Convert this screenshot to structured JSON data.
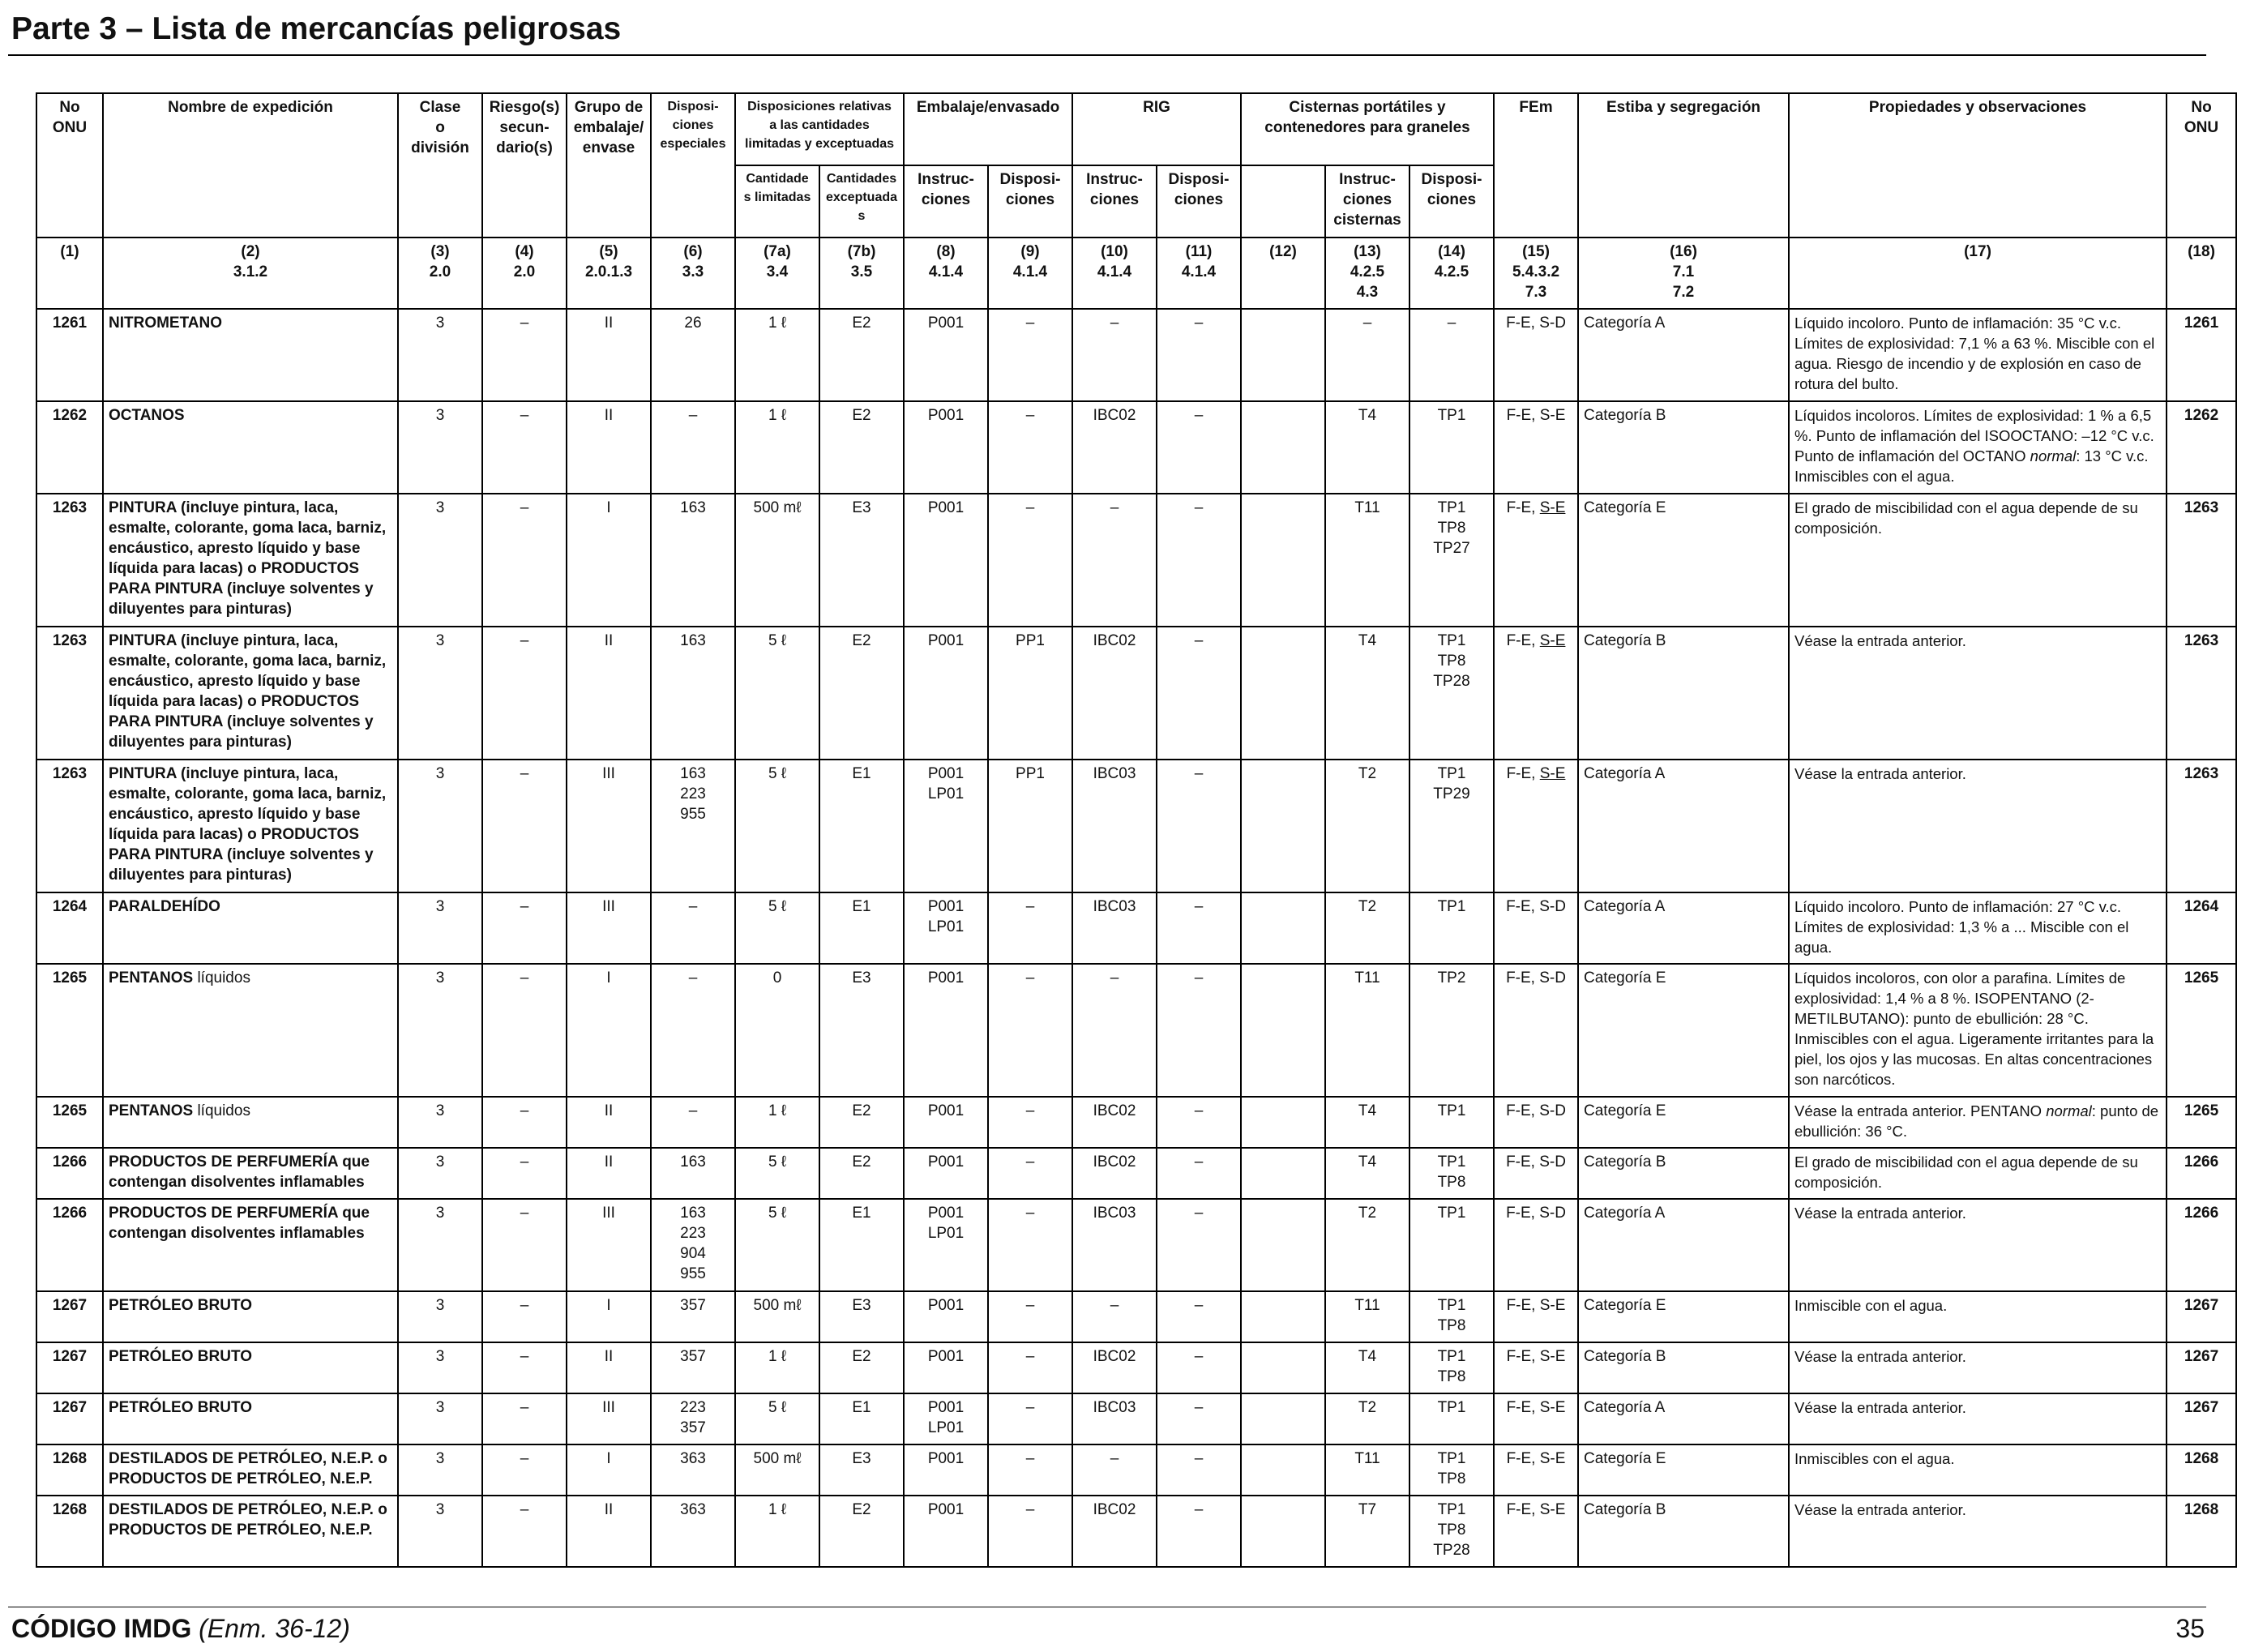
{
  "page": {
    "title": "Parte 3 – Lista de mercancías peligrosas",
    "footer_code": "CÓDIGO IMDG",
    "footer_edition": "(Enm. 36-12)",
    "page_number": "35"
  },
  "headers": {
    "unb": "No\nONU",
    "name": "Nombre de expedición",
    "class": "Clase\no\ndivisión",
    "subrisk": "Riesgo(s)\nsecun-\ndario(s)",
    "pg": "Grupo de\nembalaje/\nenvase",
    "sp": "Disposi-\nciones\nespeciales",
    "limited_group": "Disposiciones relativas\na las cantidades\nlimitadas y exceptuadas",
    "limited": "Cantidade\ns limitadas",
    "excepted": "Cantidades\nexceptuadas",
    "packing_group": "Embalaje/envasado",
    "pack_instr": "Instruc-\nciones",
    "pack_prov": "Disposi-\nciones",
    "ibc_group": "RIG",
    "ibc_instr": "Instruc-\nciones",
    "ibc_prov": "Disposi-\nciones",
    "tank_group": "Cisternas portátiles y\ncontenedores para graneles",
    "tank_instr": "Instruc-\nciones\ncisternas",
    "tank_prov": "Disposi-\nciones",
    "ems": "FEm",
    "stowage": "Estiba y segregación",
    "props": "Propiedades y observaciones",
    "unb_right": "No\nONU"
  },
  "column_numbers": [
    "(1)",
    "(2)\n3.1.2",
    "(3)\n2.0",
    "(4)\n2.0",
    "(5)\n2.0.1.3",
    "(6)\n3.3",
    "(7a)\n3.4",
    "(7b)\n3.5",
    "(8)\n4.1.4",
    "(9)\n4.1.4",
    "(10)\n4.1.4",
    "(11)\n4.1.4",
    "(12)",
    "(13)\n4.2.5\n4.3",
    "(14)\n4.2.5",
    "(15)\n5.4.3.2\n7.3",
    "(16)\n7.1\n7.2",
    "(17)",
    "(18)"
  ],
  "rows": [
    {
      "un": "1261",
      "name": "NITROMETANO",
      "name_suffix": "",
      "cls": "3",
      "sub": "–",
      "pg": "II",
      "sp": "26",
      "lq": "1 ℓ",
      "eq": "E2",
      "pi": "P001",
      "pp": "–",
      "ibc": "–",
      "ibcp": "–",
      "c12": "",
      "tk": "–",
      "tp": "–",
      "ems1": "F-E, ",
      "ems2": "S-D",
      "ems_u": false,
      "stow": "Categoría A",
      "props": "Líquido incoloro. Punto de inflamación: 35 °C v.c. Límites de explosividad: 7,1 % a 63 %. Miscible con el agua. Riesgo de incendio y de explosión en caso de rotura del bulto.",
      "props_it": "",
      "props_end": ""
    },
    {
      "un": "1262",
      "name": "OCTANOS",
      "name_suffix": "",
      "cls": "3",
      "sub": "–",
      "pg": "II",
      "sp": "–",
      "lq": "1 ℓ",
      "eq": "E2",
      "pi": "P001",
      "pp": "–",
      "ibc": "IBC02",
      "ibcp": "–",
      "c12": "",
      "tk": "T4",
      "tp": "TP1",
      "ems1": "F-E, ",
      "ems2": "S-E",
      "ems_u": false,
      "stow": "Categoría B",
      "props": "Líquidos incoloros. Límites de explosividad: 1 % a 6,5 %. Punto de inflamación del ISOOCTANO: –12 °C v.c. Punto de inflamación del OCTANO ",
      "props_it": "normal",
      "props_end": ": 13 °C v.c. Inmiscibles con el agua."
    },
    {
      "un": "1263",
      "name": "PINTURA (incluye pintura, laca, esmalte, colorante, goma laca, barniz, encáustico, apresto líquido y base líquida para lacas) o PRODUCTOS PARA PINTURA (incluye solventes y diluyentes para pinturas)",
      "name_suffix": "",
      "cls": "3",
      "sub": "–",
      "pg": "I",
      "sp": "163",
      "lq": "500 mℓ",
      "eq": "E3",
      "pi": "P001",
      "pp": "–",
      "ibc": "–",
      "ibcp": "–",
      "c12": "",
      "tk": "T11",
      "tp": "TP1\nTP8\nTP27",
      "ems1": "F-E, ",
      "ems2": "S-E",
      "ems_u": true,
      "stow": "Categoría E",
      "props": "El grado de miscibilidad con el agua depende de su composición.",
      "props_it": "",
      "props_end": ""
    },
    {
      "un": "1263",
      "name": "PINTURA (incluye pintura, laca, esmalte, colorante, goma laca, barniz, encáustico, apresto líquido y base líquida para lacas) o PRODUCTOS PARA PINTURA (incluye solventes y diluyentes para pinturas)",
      "name_suffix": "",
      "cls": "3",
      "sub": "–",
      "pg": "II",
      "sp": "163",
      "lq": "5 ℓ",
      "eq": "E2",
      "pi": "P001",
      "pp": "PP1",
      "ibc": "IBC02",
      "ibcp": "–",
      "c12": "",
      "tk": "T4",
      "tp": "TP1\nTP8\nTP28",
      "ems1": "F-E, ",
      "ems2": "S-E",
      "ems_u": true,
      "stow": "Categoría B",
      "props": "Véase la entrada anterior.",
      "props_it": "",
      "props_end": ""
    },
    {
      "un": "1263",
      "name": "PINTURA (incluye pintura, laca, esmalte, colorante, goma laca, barniz, encáustico, apresto líquido y base líquida para lacas) o PRODUCTOS PARA PINTURA (incluye solventes y diluyentes para pinturas)",
      "name_suffix": "",
      "cls": "3",
      "sub": "–",
      "pg": "III",
      "sp": "163\n223\n955",
      "lq": "5 ℓ",
      "eq": "E1",
      "pi": "P001\nLP01",
      "pp": "PP1",
      "ibc": "IBC03",
      "ibcp": "–",
      "c12": "",
      "tk": "T2",
      "tp": "TP1\nTP29",
      "ems1": "F-E, ",
      "ems2": "S-E",
      "ems_u": true,
      "stow": "Categoría A",
      "props": "Véase la entrada anterior.",
      "props_it": "",
      "props_end": ""
    },
    {
      "un": "1264",
      "name": "PARALDEHÍDO",
      "name_suffix": "",
      "cls": "3",
      "sub": "–",
      "pg": "III",
      "sp": "–",
      "lq": "5 ℓ",
      "eq": "E1",
      "pi": "P001\nLP01",
      "pp": "–",
      "ibc": "IBC03",
      "ibcp": "–",
      "c12": "",
      "tk": "T2",
      "tp": "TP1",
      "ems1": "F-E, ",
      "ems2": "S-D",
      "ems_u": false,
      "stow": "Categoría A",
      "props": "Líquido incoloro. Punto de inflamación: 27 °C v.c. Límites de explosividad: 1,3 % a ... Miscible con el agua.",
      "props_it": "",
      "props_end": ""
    },
    {
      "un": "1265",
      "name": "PENTANOS",
      "name_suffix": " líquidos",
      "cls": "3",
      "sub": "–",
      "pg": "I",
      "sp": "–",
      "lq": "0",
      "eq": "E3",
      "pi": "P001",
      "pp": "–",
      "ibc": "–",
      "ibcp": "–",
      "c12": "",
      "tk": "T11",
      "tp": "TP2",
      "ems1": "F-E, ",
      "ems2": "S-D",
      "ems_u": false,
      "stow": "Categoría E",
      "props": "Líquidos incoloros, con olor a parafina. Límites de explosividad: 1,4 % a 8 %. ISOPENTANO (2-METILBUTANO): punto de ebullición: 28 °C. Inmiscibles con el agua. Ligeramente irritantes para la piel, los ojos y las mucosas. En altas concentraciones son narcóticos.",
      "props_it": "",
      "props_end": ""
    },
    {
      "un": "1265",
      "name": "PENTANOS",
      "name_suffix": " líquidos",
      "cls": "3",
      "sub": "–",
      "pg": "II",
      "sp": "–",
      "lq": "1 ℓ",
      "eq": "E2",
      "pi": "P001",
      "pp": "–",
      "ibc": "IBC02",
      "ibcp": "–",
      "c12": "",
      "tk": "T4",
      "tp": "TP1",
      "ems1": "F-E, ",
      "ems2": "S-D",
      "ems_u": false,
      "stow": "Categoría E",
      "props": "Véase la entrada anterior. PENTANO ",
      "props_it": "normal",
      "props_end": ": punto de ebullición: 36 °C."
    },
    {
      "un": "1266",
      "name": "PRODUCTOS DE PERFUMERÍA que contengan disolventes inflamables",
      "name_suffix": "",
      "cls": "3",
      "sub": "–",
      "pg": "II",
      "sp": "163",
      "lq": "5 ℓ",
      "eq": "E2",
      "pi": "P001",
      "pp": "–",
      "ibc": "IBC02",
      "ibcp": "–",
      "c12": "",
      "tk": "T4",
      "tp": "TP1\nTP8",
      "ems1": "F-E, ",
      "ems2": "S-D",
      "ems_u": false,
      "stow": "Categoría B",
      "props": "El grado de miscibilidad con el agua depende de su composición.",
      "props_it": "",
      "props_end": ""
    },
    {
      "un": "1266",
      "name": "PRODUCTOS DE PERFUMERÍA que contengan disolventes inflamables",
      "name_suffix": "",
      "cls": "3",
      "sub": "–",
      "pg": "III",
      "sp": "163\n223\n904\n955",
      "lq": "5 ℓ",
      "eq": "E1",
      "pi": "P001\nLP01",
      "pp": "–",
      "ibc": "IBC03",
      "ibcp": "–",
      "c12": "",
      "tk": "T2",
      "tp": "TP1",
      "ems1": "F-E, ",
      "ems2": "S-D",
      "ems_u": false,
      "stow": "Categoría A",
      "props": "Véase la entrada anterior.",
      "props_it": "",
      "props_end": ""
    },
    {
      "un": "1267",
      "name": "PETRÓLEO BRUTO",
      "name_suffix": "",
      "cls": "3",
      "sub": "–",
      "pg": "I",
      "sp": "357",
      "lq": "500 mℓ",
      "eq": "E3",
      "pi": "P001",
      "pp": "–",
      "ibc": "–",
      "ibcp": "–",
      "c12": "",
      "tk": "T11",
      "tp": "TP1\nTP8",
      "ems1": "F-E, ",
      "ems2": "S-E",
      "ems_u": false,
      "stow": "Categoría E",
      "props": "Inmiscible con el agua.",
      "props_it": "",
      "props_end": ""
    },
    {
      "un": "1267",
      "name": "PETRÓLEO BRUTO",
      "name_suffix": "",
      "cls": "3",
      "sub": "–",
      "pg": "II",
      "sp": "357",
      "lq": "1 ℓ",
      "eq": "E2",
      "pi": "P001",
      "pp": "–",
      "ibc": "IBC02",
      "ibcp": "–",
      "c12": "",
      "tk": "T4",
      "tp": "TP1\nTP8",
      "ems1": "F-E, ",
      "ems2": "S-E",
      "ems_u": false,
      "stow": "Categoría B",
      "props": "Véase la entrada anterior.",
      "props_it": "",
      "props_end": ""
    },
    {
      "un": "1267",
      "name": "PETRÓLEO BRUTO",
      "name_suffix": "",
      "cls": "3",
      "sub": "–",
      "pg": "III",
      "sp": "223\n357",
      "lq": "5 ℓ",
      "eq": "E1",
      "pi": "P001\nLP01",
      "pp": "–",
      "ibc": "IBC03",
      "ibcp": "–",
      "c12": "",
      "tk": "T2",
      "tp": "TP1",
      "ems1": "F-E, ",
      "ems2": "S-E",
      "ems_u": false,
      "stow": "Categoría A",
      "props": "Véase la entrada anterior.",
      "props_it": "",
      "props_end": ""
    },
    {
      "un": "1268",
      "name": "DESTILADOS DE PETRÓLEO, N.E.P. o PRODUCTOS DE PETRÓLEO, N.E.P.",
      "name_suffix": "",
      "cls": "3",
      "sub": "–",
      "pg": "I",
      "sp": "363",
      "lq": "500 mℓ",
      "eq": "E3",
      "pi": "P001",
      "pp": "–",
      "ibc": "–",
      "ibcp": "–",
      "c12": "",
      "tk": "T11",
      "tp": "TP1\nTP8",
      "ems1": "F-E, ",
      "ems2": "S-E",
      "ems_u": false,
      "stow": "Categoría E",
      "props": "Inmiscibles con el agua.",
      "props_it": "",
      "props_end": ""
    },
    {
      "un": "1268",
      "name": "DESTILADOS DE PETRÓLEO, N.E.P. o PRODUCTOS DE PETRÓLEO, N.E.P.",
      "name_suffix": "",
      "cls": "3",
      "sub": "–",
      "pg": "II",
      "sp": "363",
      "lq": "1 ℓ",
      "eq": "E2",
      "pi": "P001",
      "pp": "–",
      "ibc": "IBC02",
      "ibcp": "–",
      "c12": "",
      "tk": "T7",
      "tp": "TP1\nTP8\nTP28",
      "ems1": "F-E, ",
      "ems2": "S-E",
      "ems_u": false,
      "stow": "Categoría B",
      "props": "Véase la entrada anterior.",
      "props_it": "",
      "props_end": ""
    }
  ]
}
